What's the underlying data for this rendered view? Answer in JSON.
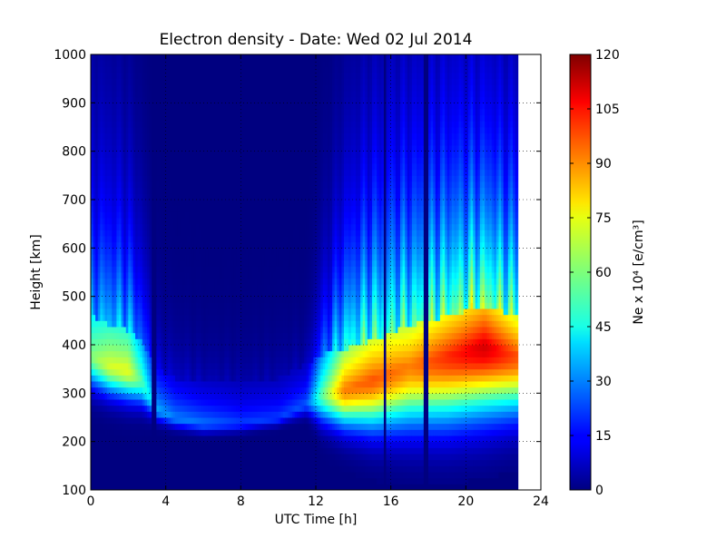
{
  "chart_data": {
    "type": "heatmap",
    "title": "Electron density - Date: Wed 02 Jul 2014",
    "xlabel": "UTC Time [h]",
    "ylabel": "Height [km]",
    "colorbar_label": "Ne x 10⁴ [e/cm³]",
    "xlim": [
      0,
      24
    ],
    "ylim": [
      100,
      1000
    ],
    "clim": [
      0,
      120
    ],
    "x_ticks": [
      0,
      4,
      8,
      12,
      16,
      20,
      24
    ],
    "x_tick_labels": [
      "0",
      "4",
      "8",
      "12",
      "16",
      "20",
      "24"
    ],
    "y_ticks": [
      100,
      200,
      300,
      400,
      500,
      600,
      700,
      800,
      900,
      1000
    ],
    "y_tick_labels": [
      "100",
      "200",
      "300",
      "400",
      "500",
      "600",
      "700",
      "800",
      "900",
      "1000"
    ],
    "colorbar_ticks": [
      0,
      15,
      30,
      45,
      60,
      75,
      90,
      105,
      120
    ],
    "colorbar_tick_labels": [
      "0",
      "15",
      "30",
      "45",
      "60",
      "75",
      "90",
      "105",
      "120"
    ],
    "colormap": "jet",
    "grid": "dotted",
    "data_end_hour": 22.8,
    "dropouts_hours": [
      15.7,
      17.9,
      3.4
    ],
    "profiles": [
      {
        "t": 0.0,
        "peak_h": 380,
        "peak": 60,
        "bottom_h": 270,
        "width": 220
      },
      {
        "t": 1.0,
        "peak_h": 360,
        "peak": 70,
        "bottom_h": 255,
        "width": 200
      },
      {
        "t": 2.0,
        "peak_h": 350,
        "peak": 72,
        "bottom_h": 245,
        "width": 180
      },
      {
        "t": 2.7,
        "peak_h": 330,
        "peak": 55,
        "bottom_h": 240,
        "width": 150
      },
      {
        "t": 3.5,
        "peak_h": 270,
        "peak": 35,
        "bottom_h": 225,
        "width": 80
      },
      {
        "t": 4.5,
        "peak_h": 250,
        "peak": 30,
        "bottom_h": 215,
        "width": 70
      },
      {
        "t": 6.0,
        "peak_h": 240,
        "peak": 28,
        "bottom_h": 205,
        "width": 60
      },
      {
        "t": 8.0,
        "peak_h": 240,
        "peak": 22,
        "bottom_h": 210,
        "width": 60
      },
      {
        "t": 10.0,
        "peak_h": 250,
        "peak": 22,
        "bottom_h": 225,
        "width": 60
      },
      {
        "t": 11.5,
        "peak_h": 280,
        "peak": 25,
        "bottom_h": 240,
        "width": 60
      },
      {
        "t": 12.3,
        "peak_h": 300,
        "peak": 55,
        "bottom_h": 200,
        "width": 120
      },
      {
        "t": 13.5,
        "peak_h": 310,
        "peak": 90,
        "bottom_h": 180,
        "width": 180
      },
      {
        "t": 15.0,
        "peak_h": 330,
        "peak": 95,
        "bottom_h": 160,
        "width": 220
      },
      {
        "t": 17.0,
        "peak_h": 360,
        "peak": 90,
        "bottom_h": 150,
        "width": 240
      },
      {
        "t": 19.0,
        "peak_h": 380,
        "peak": 100,
        "bottom_h": 150,
        "width": 240
      },
      {
        "t": 21.0,
        "peak_h": 400,
        "peak": 110,
        "bottom_h": 165,
        "width": 230
      },
      {
        "t": 22.8,
        "peak_h": 380,
        "peak": 95,
        "bottom_h": 180,
        "width": 220
      }
    ]
  }
}
